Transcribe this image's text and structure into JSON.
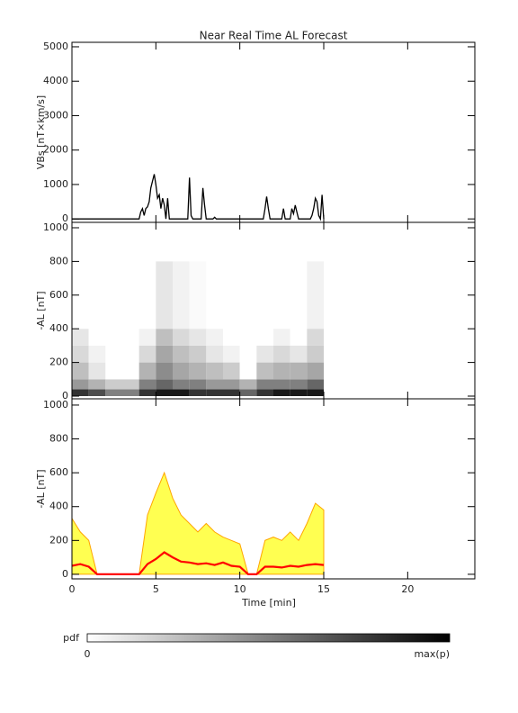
{
  "title": "Near Real Time AL Forecast",
  "colorbar": {
    "label": "pdf",
    "min_label": "0",
    "max_label": "max(p)"
  },
  "chart_data": [
    {
      "type": "line",
      "ylabel": "VBs [nT×km/s]",
      "color": "#000000",
      "xlim": [
        0,
        24
      ],
      "xticks": [
        0,
        5,
        10,
        15,
        20
      ],
      "ylim": [
        -100,
        5130
      ],
      "yticks": [
        0,
        1000,
        2000,
        3000,
        4000,
        5000
      ],
      "x": [
        0,
        4.0,
        4.1,
        4.2,
        4.3,
        4.4,
        4.5,
        4.6,
        4.7,
        4.8,
        4.9,
        5.0,
        5.1,
        5.2,
        5.3,
        5.4,
        5.5,
        5.6,
        5.7,
        5.8,
        6.9,
        7.0,
        7.1,
        7.2,
        7.7,
        7.8,
        7.9,
        8.0,
        8.4,
        8.5,
        8.6,
        11.4,
        11.5,
        11.6,
        11.7,
        11.8,
        12.5,
        12.6,
        12.7,
        13.0,
        13.1,
        13.2,
        13.3,
        13.4,
        13.5,
        14.2,
        14.3,
        14.4,
        14.5,
        14.6,
        14.7,
        14.8,
        14.9,
        15.0
      ],
      "values": [
        0,
        0,
        200,
        300,
        100,
        300,
        350,
        500,
        900,
        1100,
        1300,
        1000,
        600,
        700,
        300,
        600,
        400,
        0,
        600,
        0,
        0,
        1200,
        100,
        0,
        0,
        900,
        400,
        0,
        0,
        50,
        0,
        0,
        300,
        650,
        300,
        0,
        0,
        300,
        0,
        0,
        300,
        150,
        400,
        200,
        0,
        0,
        100,
        300,
        600,
        500,
        100,
        0,
        700,
        0
      ]
    },
    {
      "type": "heatmap",
      "ylabel": "-AL [nT]",
      "xlim": [
        0,
        24
      ],
      "xticks": [
        0,
        5,
        10,
        15,
        20
      ],
      "ylim": [
        -16,
        1032
      ],
      "yticks": [
        0,
        200,
        400,
        600,
        800,
        1000
      ],
      "x_edges": [
        0,
        1,
        2,
        3,
        4,
        5,
        6,
        7,
        8,
        9,
        10,
        11,
        12,
        13,
        14,
        15
      ],
      "y_edges": [
        0,
        40,
        100,
        200,
        300,
        400,
        800
      ],
      "z": [
        [
          0.8,
          0.7,
          0.5,
          0.5,
          0.8,
          0.9,
          0.9,
          0.8,
          0.8,
          0.8,
          0.6,
          0.8,
          0.9,
          0.9,
          0.9
        ],
        [
          0.4,
          0.3,
          0.2,
          0.2,
          0.5,
          0.6,
          0.5,
          0.5,
          0.4,
          0.4,
          0.3,
          0.5,
          0.5,
          0.5,
          0.6
        ],
        [
          0.25,
          0.1,
          0,
          0,
          0.3,
          0.45,
          0.35,
          0.3,
          0.25,
          0.2,
          0,
          0.25,
          0.3,
          0.3,
          0.35
        ],
        [
          0.15,
          0.05,
          0,
          0,
          0.15,
          0.35,
          0.25,
          0.2,
          0.1,
          0.05,
          0,
          0.1,
          0.15,
          0.1,
          0.2
        ],
        [
          0.1,
          0,
          0,
          0,
          0.05,
          0.25,
          0.15,
          0.1,
          0.05,
          0,
          0,
          0,
          0.05,
          0,
          0.15
        ],
        [
          0,
          0,
          0,
          0,
          0,
          0.1,
          0.05,
          0.02,
          0,
          0,
          0,
          0,
          0,
          0,
          0.05
        ]
      ]
    },
    {
      "type": "area",
      "ylabel": "-AL [nT]",
      "xlabel": "Time [min]",
      "xlim": [
        0,
        24
      ],
      "xticks": [
        0,
        5,
        10,
        15,
        20
      ],
      "ylim": [
        -27,
        1037
      ],
      "yticks": [
        0,
        200,
        400,
        600,
        800,
        1000
      ],
      "x": [
        0,
        0.5,
        1,
        1.5,
        2,
        2.5,
        3,
        3.5,
        4,
        4.5,
        5,
        5.5,
        6,
        6.5,
        7,
        7.5,
        8,
        8.5,
        9,
        9.5,
        10,
        10.5,
        11,
        11.5,
        12,
        12.5,
        13,
        13.5,
        14,
        14.5,
        15
      ],
      "upper": {
        "color": "#ffff33",
        "edge_color": "#ffa500",
        "values": [
          330,
          250,
          200,
          0,
          0,
          0,
          0,
          0,
          0,
          350,
          480,
          600,
          450,
          350,
          300,
          250,
          300,
          250,
          220,
          200,
          180,
          0,
          0,
          200,
          220,
          200,
          250,
          200,
          300,
          420,
          380
        ]
      },
      "median": {
        "color": "#ff0000",
        "values": [
          50,
          60,
          45,
          0,
          0,
          0,
          0,
          0,
          0,
          60,
          90,
          130,
          100,
          75,
          70,
          60,
          65,
          55,
          70,
          50,
          45,
          0,
          0,
          45,
          45,
          40,
          50,
          45,
          55,
          60,
          55
        ]
      }
    }
  ]
}
